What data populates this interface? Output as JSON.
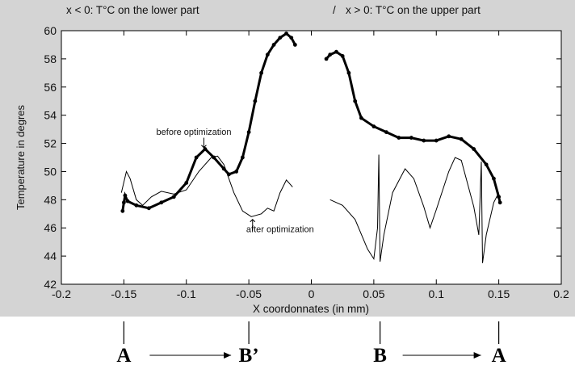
{
  "chart_data": {
    "type": "line",
    "title_left": "x < 0: T°C on the lower part",
    "title_sep": "/",
    "title_right": "x > 0: T°C on the upper part",
    "xlabel": "X coordonnates (in mm)",
    "ylabel": "Temperature in degres",
    "xlim": [
      -0.2,
      0.2
    ],
    "ylim": [
      42,
      60
    ],
    "xticks": [
      -0.2,
      -0.15,
      -0.1,
      -0.05,
      0,
      0.05,
      0.1,
      0.15,
      0.2
    ],
    "xtick_labels": [
      "-0.2",
      "-0.15",
      "-0.1",
      "-0.05",
      "0",
      "0.05",
      "0.1",
      "0.15",
      "0.2"
    ],
    "yticks": [
      42,
      44,
      46,
      48,
      50,
      52,
      54,
      56,
      58,
      60
    ],
    "ytick_labels": [
      "42",
      "44",
      "46",
      "48",
      "50",
      "52",
      "54",
      "56",
      "58",
      "60"
    ],
    "grid": false,
    "series": [
      {
        "style": "markers",
        "color": "#000000",
        "segments": [
          [
            [
              -0.151,
              47.2
            ],
            [
              -0.15,
              47.8
            ],
            [
              -0.149,
              48.3
            ],
            [
              -0.147,
              47.9
            ],
            [
              -0.14,
              47.6
            ],
            [
              -0.13,
              47.4
            ],
            [
              -0.12,
              47.8
            ],
            [
              -0.11,
              48.2
            ],
            [
              -0.1,
              49.2
            ],
            [
              -0.092,
              51.0
            ],
            [
              -0.085,
              51.6
            ],
            [
              -0.078,
              51.0
            ],
            [
              -0.07,
              50.2
            ],
            [
              -0.066,
              49.8
            ],
            [
              -0.06,
              50.0
            ],
            [
              -0.055,
              51.0
            ],
            [
              -0.05,
              52.8
            ],
            [
              -0.045,
              55.0
            ],
            [
              -0.04,
              57.0
            ],
            [
              -0.035,
              58.3
            ],
            [
              -0.03,
              59.0
            ],
            [
              -0.025,
              59.5
            ],
            [
              -0.02,
              59.8
            ],
            [
              -0.016,
              59.5
            ],
            [
              -0.013,
              59.0
            ]
          ],
          [
            [
              0.012,
              58.0
            ],
            [
              0.015,
              58.3
            ],
            [
              0.02,
              58.5
            ],
            [
              0.025,
              58.2
            ],
            [
              0.03,
              57.0
            ],
            [
              0.035,
              55.0
            ],
            [
              0.04,
              53.8
            ],
            [
              0.05,
              53.2
            ],
            [
              0.06,
              52.8
            ],
            [
              0.07,
              52.4
            ],
            [
              0.08,
              52.4
            ],
            [
              0.09,
              52.2
            ],
            [
              0.1,
              52.2
            ],
            [
              0.11,
              52.5
            ],
            [
              0.12,
              52.3
            ],
            [
              0.13,
              51.6
            ],
            [
              0.14,
              50.5
            ],
            [
              0.146,
              49.5
            ],
            [
              0.15,
              48.2
            ],
            [
              0.151,
              47.8
            ]
          ]
        ]
      },
      {
        "style": "line",
        "color": "#000000",
        "segments": [
          [
            [
              -0.152,
              48.5
            ],
            [
              -0.148,
              50.0
            ],
            [
              -0.145,
              49.5
            ],
            [
              -0.14,
              48.0
            ],
            [
              -0.135,
              47.6
            ],
            [
              -0.128,
              48.2
            ],
            [
              -0.12,
              48.6
            ],
            [
              -0.11,
              48.4
            ],
            [
              -0.1,
              48.7
            ],
            [
              -0.09,
              50.0
            ],
            [
              -0.08,
              51.0
            ],
            [
              -0.075,
              51.1
            ],
            [
              -0.07,
              50.5
            ],
            [
              -0.062,
              48.5
            ],
            [
              -0.055,
              47.2
            ],
            [
              -0.048,
              46.8
            ],
            [
              -0.04,
              47.0
            ],
            [
              -0.035,
              47.4
            ],
            [
              -0.03,
              47.2
            ],
            [
              -0.025,
              48.5
            ],
            [
              -0.02,
              49.4
            ],
            [
              -0.015,
              48.9
            ]
          ],
          [
            [
              0.015,
              48.0
            ],
            [
              0.025,
              47.6
            ],
            [
              0.035,
              46.6
            ],
            [
              0.045,
              44.5
            ],
            [
              0.05,
              43.8
            ],
            [
              0.053,
              46.0
            ],
            [
              0.054,
              51.2
            ],
            [
              0.055,
              43.6
            ],
            [
              0.058,
              45.5
            ],
            [
              0.065,
              48.5
            ],
            [
              0.075,
              50.2
            ],
            [
              0.082,
              49.5
            ],
            [
              0.09,
              47.5
            ],
            [
              0.095,
              46.0
            ],
            [
              0.1,
              47.3
            ],
            [
              0.11,
              50.0
            ],
            [
              0.115,
              51.0
            ],
            [
              0.12,
              50.8
            ],
            [
              0.13,
              47.5
            ],
            [
              0.134,
              45.5
            ],
            [
              0.136,
              50.7
            ],
            [
              0.137,
              43.5
            ],
            [
              0.14,
              45.5
            ],
            [
              0.146,
              47.8
            ],
            [
              0.15,
              48.5
            ]
          ]
        ]
      }
    ],
    "annotations": [
      {
        "text": "before optimization",
        "x": -0.094,
        "y": 52.6
      },
      {
        "text": "after optimization",
        "x": -0.025,
        "y": 45.7
      }
    ],
    "bottom_markers": [
      {
        "label": "A",
        "x": -0.15
      },
      {
        "label": "B’",
        "x": -0.05
      },
      {
        "label": "B",
        "x": 0.055
      },
      {
        "label": "A",
        "x": 0.15
      }
    ]
  }
}
